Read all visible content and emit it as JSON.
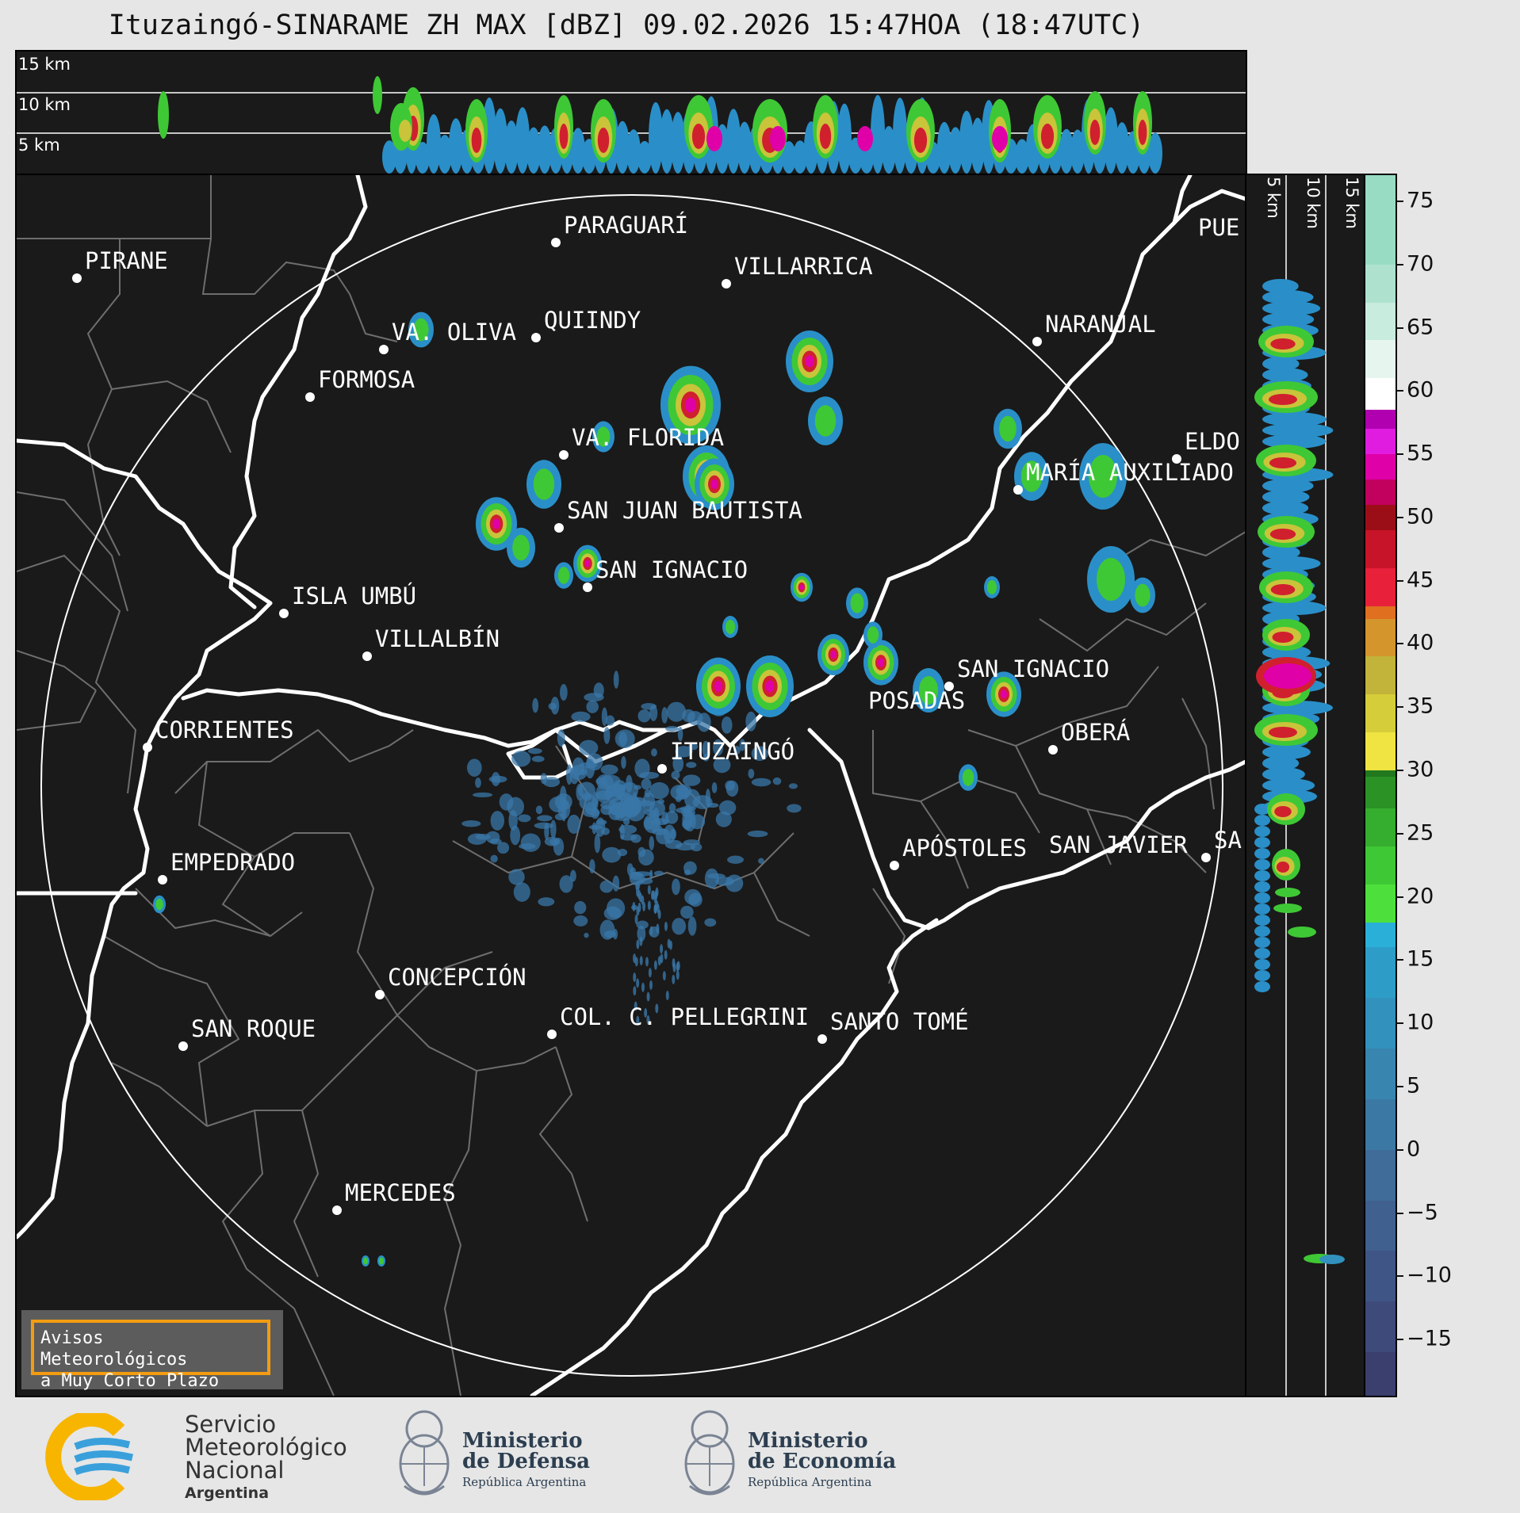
{
  "title": "Ituzaingó-SINARAME ZH MAX [dBZ] 09.02.2026 15:47HOA (18:47UTC)",
  "top_strip_heights": [
    "15 km",
    "10 km",
    "5 km"
  ],
  "right_strip_heights": [
    "5 km",
    "10 km",
    "15 km"
  ],
  "colorbar": {
    "ticks": [
      "75",
      "70",
      "65",
      "60",
      "55",
      "50",
      "45",
      "40",
      "35",
      "30",
      "25",
      "20",
      "15",
      "10",
      "5",
      "0",
      "−5",
      "−10",
      "−15"
    ],
    "range": [
      -19.5,
      77
    ]
  },
  "cities": [
    {
      "name": "PIRANE"
    },
    {
      "name": "PARAGUARÍ"
    },
    {
      "name": "VILLARRICA"
    },
    {
      "name": "QUIINDY"
    },
    {
      "name": "VA. OLIVA"
    },
    {
      "name": "FORMOSA"
    },
    {
      "name": "NARANJAL"
    },
    {
      "name": "PUE"
    },
    {
      "name": "VA. FLORIDA"
    },
    {
      "name": "ELDO"
    },
    {
      "name": "MARÍA AUXILIADO"
    },
    {
      "name": "SAN JUAN BAUTISTA"
    },
    {
      "name": "SAN IGNACIO"
    },
    {
      "name": "ISLA UMBÚ"
    },
    {
      "name": "VILLALBÍN"
    },
    {
      "name": "SAN IGNACIO"
    },
    {
      "name": "POSADAS"
    },
    {
      "name": "CORRIENTES"
    },
    {
      "name": "ITUZAINGÓ"
    },
    {
      "name": "OBERÁ"
    },
    {
      "name": "EMPEDRADO"
    },
    {
      "name": "APÓSTOLES"
    },
    {
      "name": "SAN JAVIER"
    },
    {
      "name": "SA"
    },
    {
      "name": "CONCEPCIÓN"
    },
    {
      "name": "COL. C. PELLEGRINI"
    },
    {
      "name": "SANTO TOMÉ"
    },
    {
      "name": "SAN ROQUE"
    },
    {
      "name": "MERCEDES"
    }
  ],
  "warning_box": {
    "line1": "Avisos Meteorológicos",
    "line2": "a Muy Corto Plazo"
  },
  "footer": {
    "smn": {
      "line1": "Servicio",
      "line2": "Meteorológico",
      "line3": "Nacional",
      "line4": "Argentina"
    },
    "defensa": {
      "line1": "Ministerio",
      "line2": "de Defensa",
      "line3": "República Argentina"
    },
    "economia": {
      "line1": "Ministerio",
      "line2": "de Economía",
      "line3": "República Argentina"
    }
  },
  "colors": {
    "background": "#1a1a1a",
    "rivers": "#ffffff",
    "borders": "#777777",
    "warning_border": "#f39c12"
  }
}
